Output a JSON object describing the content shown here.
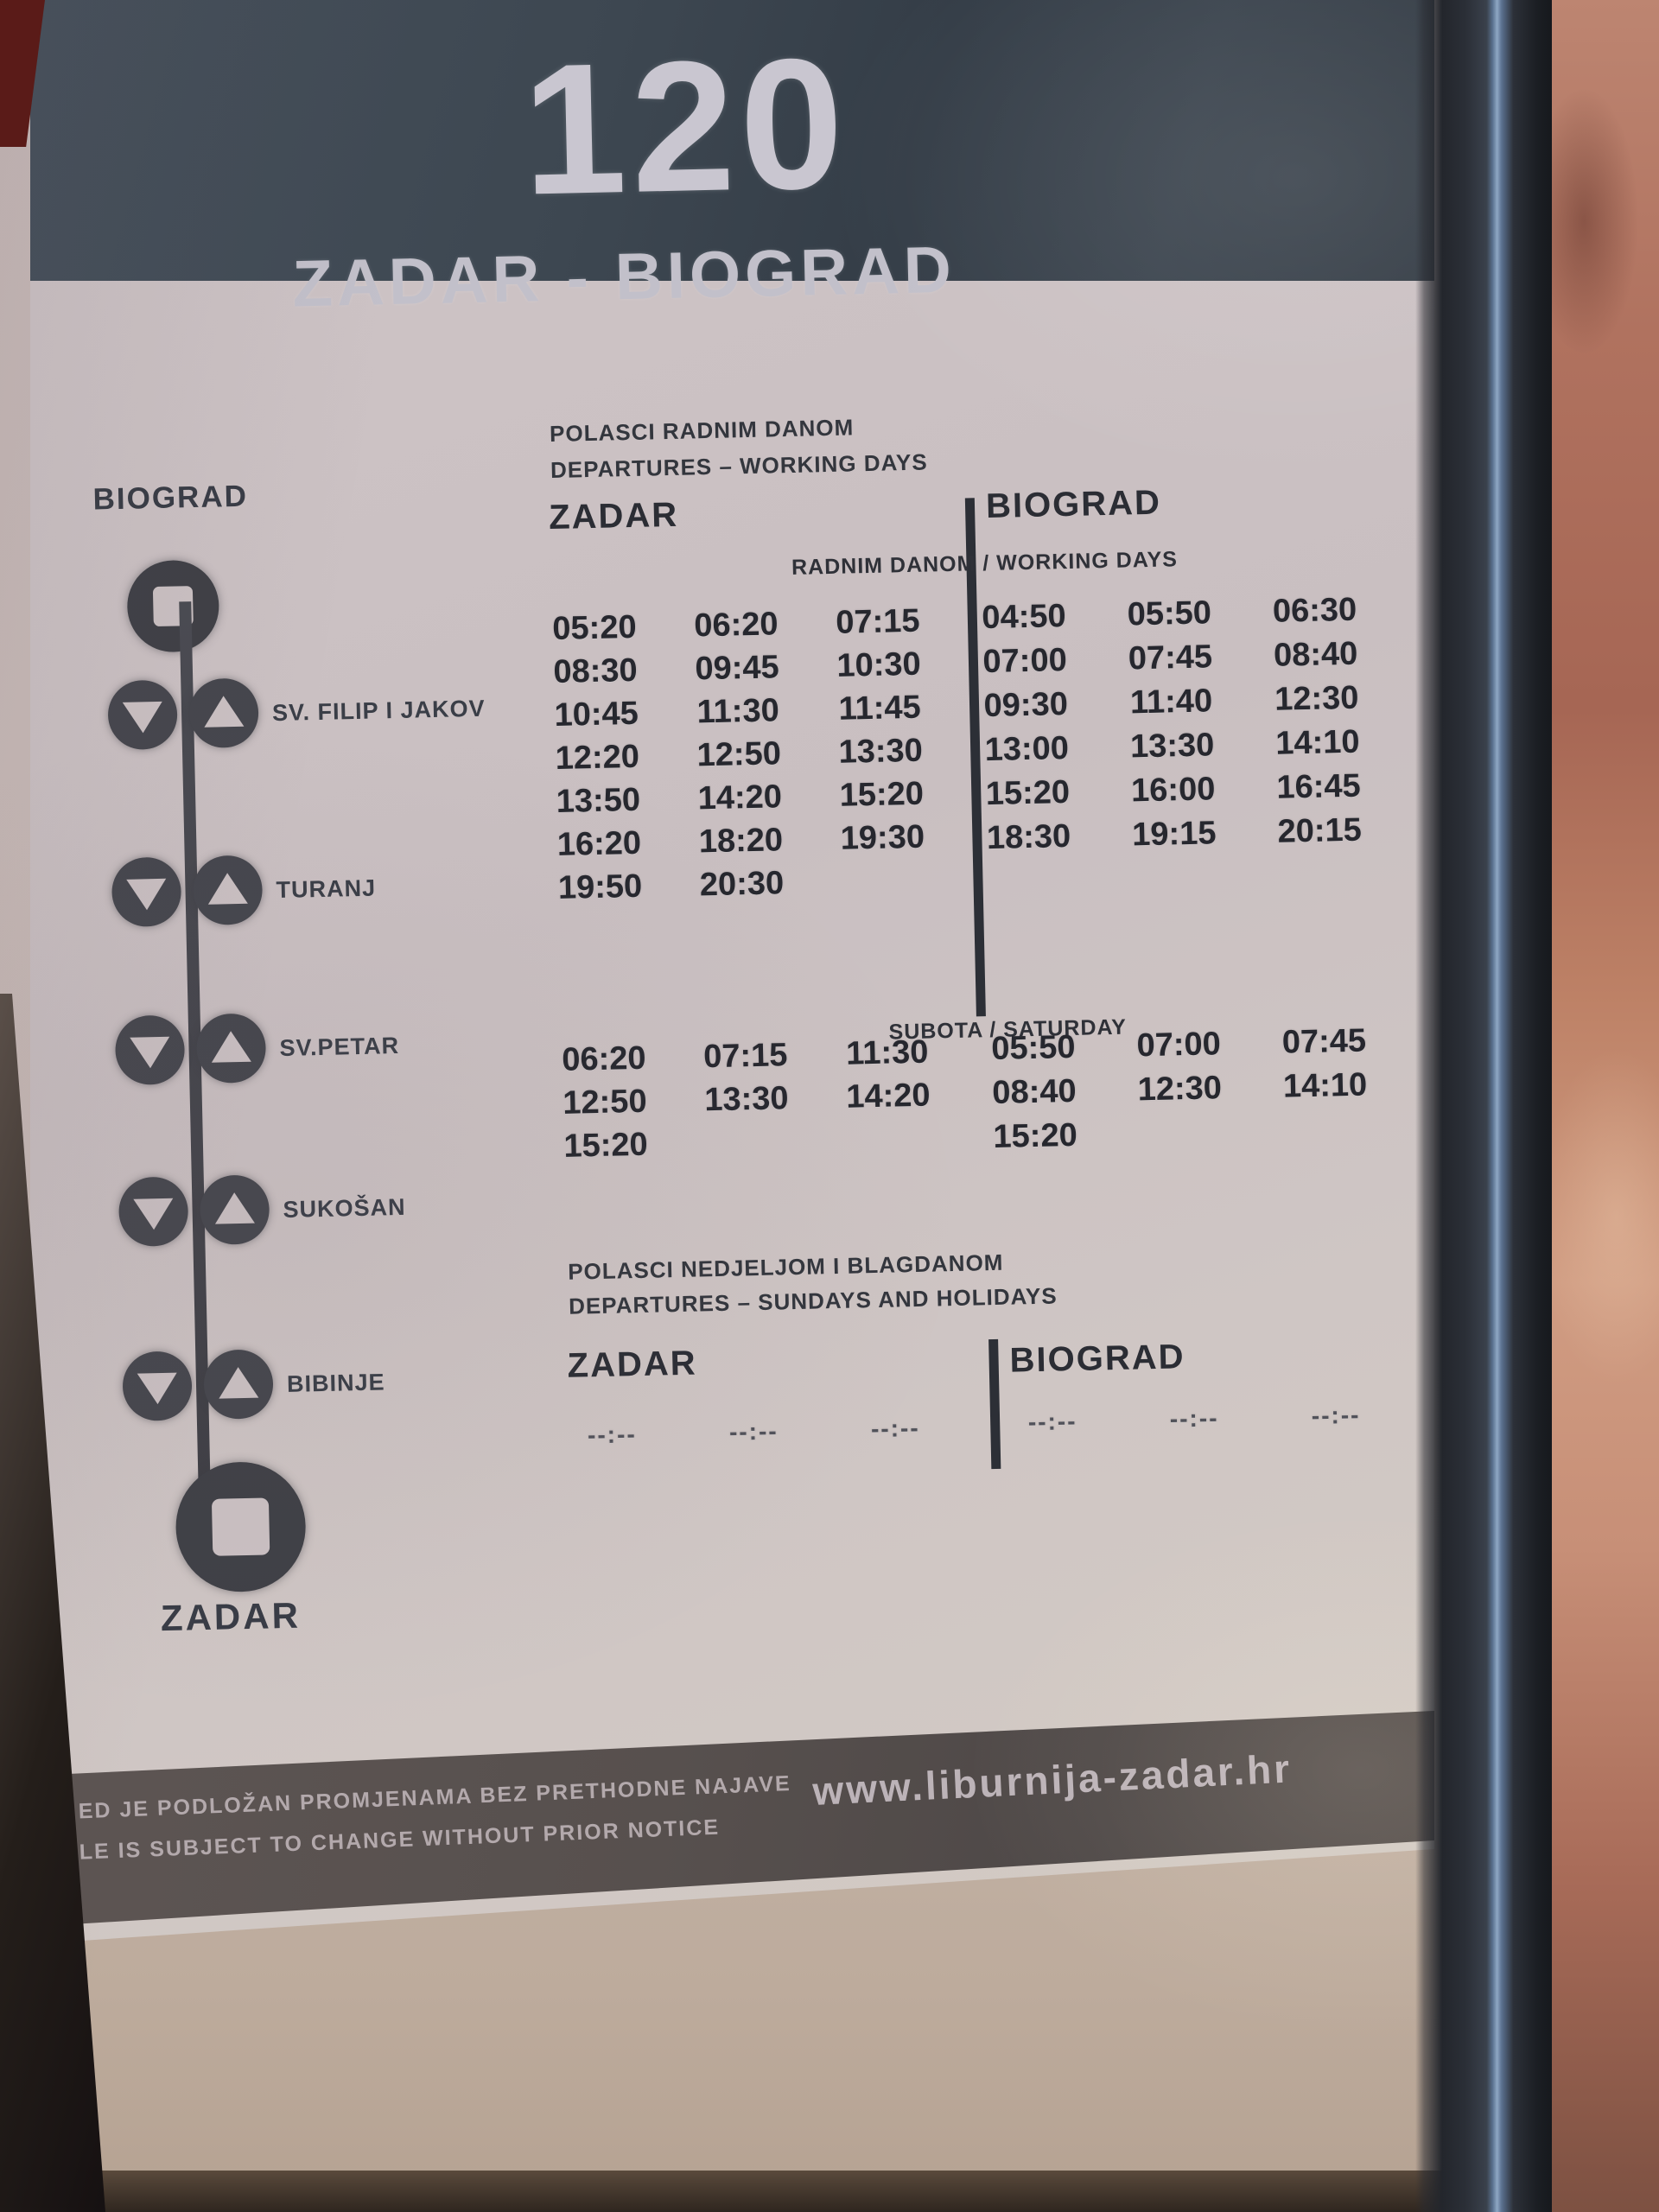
{
  "header": {
    "route_number": "120",
    "route_name": "ZADAR - BIOGRAD"
  },
  "route_diagram": {
    "top_terminus": "BIOGRAD",
    "stops": [
      "SV. FILIP I JAKOV",
      "TURANJ",
      "SV.PETAR",
      "SUKOŠAN",
      "BIBINJE"
    ],
    "bottom_terminus": "ZADAR"
  },
  "working_days": {
    "title_hr": "POLASCI RADNIM DANOM",
    "title_en": "DEPARTURES – WORKING DAYS",
    "from_label": "ZADAR",
    "to_label": "BIOGRAD",
    "subheader": "RADNIM DANOM / WORKING DAYS",
    "zadar_times": [
      "05:20",
      "06:20",
      "07:15",
      "08:30",
      "09:45",
      "10:30",
      "10:45",
      "11:30",
      "11:45",
      "12:20",
      "12:50",
      "13:30",
      "13:50",
      "14:20",
      "15:20",
      "16:20",
      "18:20",
      "19:30",
      "19:50",
      "20:30"
    ],
    "biograd_times": [
      "04:50",
      "05:50",
      "06:30",
      "07:00",
      "07:45",
      "08:40",
      "09:30",
      "11:40",
      "12:30",
      "13:00",
      "13:30",
      "14:10",
      "15:20",
      "16:00",
      "16:45",
      "18:30",
      "19:15",
      "20:15"
    ]
  },
  "saturday": {
    "subheader": "SUBOTA / SATURDAY",
    "zadar_times": [
      "06:20",
      "07:15",
      "11:30",
      "12:50",
      "13:30",
      "14:20",
      "15:20"
    ],
    "biograd_times": [
      "05:50",
      "07:00",
      "07:45",
      "08:40",
      "12:30",
      "14:10",
      "15:20"
    ]
  },
  "sunday": {
    "title_hr": "POLASCI NEDJELJOM I BLAGDANOM",
    "title_en": "DEPARTURES – SUNDAYS AND HOLIDAYS",
    "from_label": "ZADAR",
    "to_label": "BIOGRAD",
    "zadar_times": [
      "--:--",
      "--:--",
      "--:--"
    ],
    "biograd_times": [
      "--:--",
      "--:--",
      "--:--"
    ]
  },
  "footer": {
    "disclaimer_hr": "ED JE PODLOŽAN PROMJENAMA BEZ PRETHODNE NAJAVE",
    "disclaimer_en": "LE IS SUBJECT TO CHANGE WITHOUT PRIOR NOTICE",
    "website": "www.liburnija-zadar.hr"
  },
  "colors": {
    "header_bg": "#3e4751",
    "paper": "#cac0c2",
    "footer_bg": "#57504e",
    "text_dark": "#292b32",
    "text_light": "#c6c3cc",
    "skin": "#b87c68"
  }
}
